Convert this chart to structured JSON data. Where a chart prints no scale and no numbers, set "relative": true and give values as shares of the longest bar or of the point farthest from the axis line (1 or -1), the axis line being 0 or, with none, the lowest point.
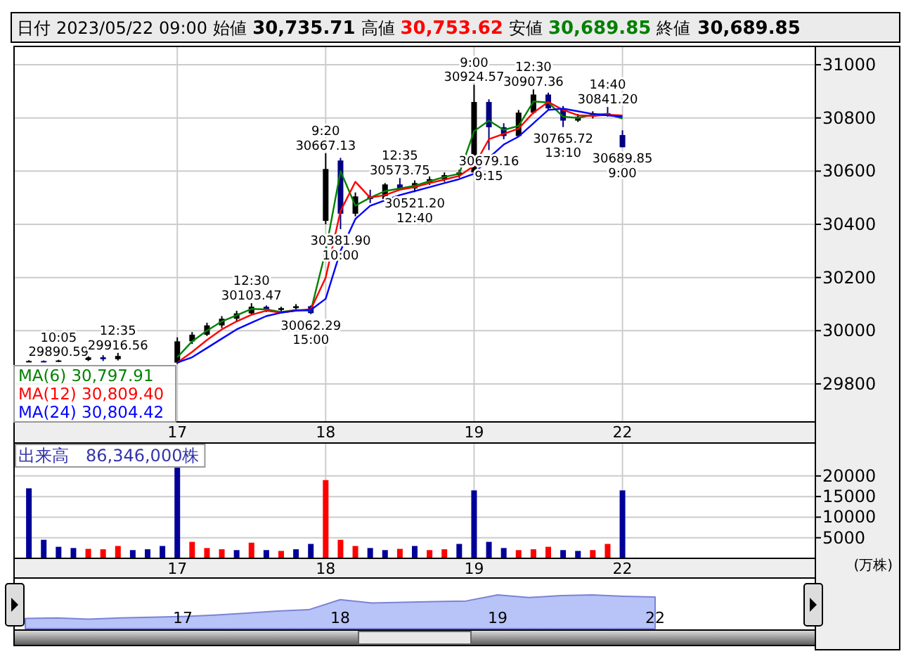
{
  "chart_data": [
    {
      "type": "other",
      "annotations": [
        "日付",
        "2023/05/22 09:00",
        "始値",
        "30,735.71",
        "高値",
        "30,753.62",
        "安値",
        "30,689.85",
        "終値",
        "30,689.85"
      ]
    },
    {
      "type": "candlestick",
      "categories": [
        null,
        null,
        null,
        null,
        null,
        null,
        null,
        null,
        null,
        null,
        "17",
        null,
        null,
        null,
        null,
        null,
        null,
        null,
        null,
        null,
        "18",
        null,
        null,
        null,
        null,
        null,
        null,
        null,
        null,
        null,
        "19",
        null,
        null,
        null,
        null,
        null,
        null,
        null,
        null,
        null,
        "22",
        null,
        null,
        null,
        null,
        null,
        null,
        null,
        null,
        null,
        null,
        null,
        null
      ],
      "ohlc": [
        [
          29884,
          29889,
          29882,
          29886
        ],
        [
          29886,
          29888,
          29882,
          29884
        ],
        [
          29884,
          29890.59,
          29883,
          29888
        ],
        null,
        [
          29890,
          29905,
          29886,
          29900
        ],
        [
          29900,
          29908,
          29886,
          29893
        ],
        [
          29893,
          29916.56,
          29888,
          29905
        ],
        null,
        null,
        null,
        [
          29880,
          29975,
          29875,
          29960
        ],
        [
          29960,
          29995,
          29950,
          29985
        ],
        [
          29985,
          30030,
          29980,
          30020
        ],
        [
          30020,
          30055,
          30010,
          30045
        ],
        [
          30045,
          30075,
          30035,
          30065
        ],
        [
          30065,
          30103.47,
          30060,
          30090
        ],
        [
          30090,
          30095,
          30070,
          30078
        ],
        [
          30078,
          30090,
          30072,
          30085
        ],
        [
          30085,
          30100,
          30080,
          30092
        ],
        [
          30092,
          30095,
          30062.29,
          30066
        ],
        [
          30413,
          30667.13,
          30400,
          30608
        ],
        [
          30640,
          30650,
          30381.9,
          30440
        ],
        [
          30440,
          30520,
          30430,
          30505
        ],
        [
          30505,
          30530,
          30480,
          30495
        ],
        [
          30495,
          30555,
          30490,
          30550
        ],
        [
          30550,
          30573.75,
          30530,
          30535
        ],
        [
          30535,
          30565,
          30521.2,
          30555
        ],
        [
          30555,
          30580,
          30548,
          30570
        ],
        [
          30570,
          30595,
          30560,
          30585
        ],
        [
          30585,
          30605,
          30575,
          30595
        ],
        [
          30595,
          30924.57,
          30590,
          30860
        ],
        [
          30860,
          30870,
          30679.16,
          30765
        ],
        [
          30765,
          30780,
          30720,
          30732
        ],
        [
          30732,
          30830,
          30728,
          30820
        ],
        [
          30820,
          30907.36,
          30815,
          30888
        ],
        [
          30888,
          30895,
          30830,
          30836
        ],
        [
          30836,
          30845,
          30765.72,
          30790
        ],
        [
          30790,
          30815,
          30785,
          30805
        ],
        [
          30805,
          30825,
          30798,
          30818
        ],
        [
          30818,
          30841.2,
          30805,
          30810
        ],
        [
          30735.71,
          30753.62,
          30689.85,
          30689.85
        ],
        null,
        null,
        null,
        null,
        null,
        null,
        null,
        null,
        null,
        null,
        null,
        null
      ],
      "colors": [
        "#000000",
        "#000080",
        "#000000",
        null,
        "#000000",
        "#000080",
        "#000000",
        null,
        null,
        null,
        "#000000",
        "#000000",
        "#000000",
        "#000000",
        "#000000",
        "#000000",
        "#000080",
        "#000000",
        "#000000",
        "#000080",
        "#000000",
        "#000080",
        "#000000",
        "#000080",
        "#000000",
        "#000080",
        "#000000",
        "#000000",
        "#000000",
        "#000000",
        "#000000",
        "#000080",
        "#000080",
        "#000000",
        "#000000",
        "#000080",
        "#000080",
        "#000000",
        "#000000",
        "#000080",
        "#000080",
        null,
        null,
        null,
        null,
        null,
        null,
        null,
        null,
        null,
        null,
        null,
        null
      ],
      "ylim": [
        29657,
        31069
      ],
      "yticks": [
        29800,
        30000,
        30200,
        30400,
        30600,
        30800,
        31000
      ],
      "grid": true,
      "legend": "bottom left",
      "series": [
        {
          "name": "MA(6)  30,797.91",
          "type": "line",
          "color": "#008000",
          "values": [
            null,
            null,
            null,
            null,
            null,
            null,
            null,
            null,
            null,
            null,
            29900,
            29960,
            30000,
            30035,
            30058,
            30082,
            30080,
            30070,
            30078,
            30075,
            30300,
            30600,
            30470,
            30500,
            30525,
            30535,
            30545,
            30562,
            30578,
            30590,
            30750,
            30790,
            30755,
            30770,
            30862,
            30858,
            30805,
            30800,
            30812,
            30815,
            30797.91,
            null,
            null,
            null,
            null,
            null,
            null,
            null,
            null,
            null,
            null,
            null,
            null
          ]
        },
        {
          "name": "MA(12) 30,809.40",
          "type": "line",
          "color": "#ff0000",
          "values": [
            null,
            null,
            null,
            null,
            null,
            null,
            null,
            null,
            null,
            null,
            29880,
            29920,
            29965,
            30005,
            30035,
            30060,
            30075,
            30068,
            30076,
            30080,
            30200,
            30450,
            30560,
            30500,
            30510,
            30530,
            30540,
            30555,
            30568,
            30582,
            30620,
            30720,
            30740,
            30760,
            30820,
            30860,
            30830,
            30810,
            30808,
            30812,
            30809.4,
            null,
            null,
            null,
            null,
            null,
            null,
            null,
            null,
            null,
            null,
            null,
            null
          ]
        },
        {
          "name": "MA(24) 30,804.42",
          "type": "line",
          "color": "#0000ff",
          "values": [
            null,
            null,
            null,
            null,
            null,
            null,
            null,
            null,
            null,
            null,
            29880,
            29900,
            29935,
            29970,
            30005,
            30030,
            30055,
            30068,
            30075,
            30078,
            30120,
            30300,
            30420,
            30470,
            30490,
            30510,
            30525,
            30540,
            30555,
            30570,
            30590,
            30650,
            30700,
            30730,
            30780,
            30830,
            30835,
            30825,
            30815,
            30810,
            30804.42,
            null,
            null,
            null,
            null,
            null,
            null,
            null,
            null,
            null,
            null,
            null,
            null
          ]
        }
      ],
      "annotations": [
        {
          "text": "10:05\n29890.59",
          "y": 29890.59
        },
        {
          "text": "12:35\n29916.56",
          "y": 29916.56
        },
        {
          "text": "12:30\n30103.47",
          "y": 30103.47
        },
        {
          "text": "30062.29\n15:00",
          "y": 30062.29
        },
        {
          "text": "9:20\n30667.13",
          "y": 30667.13
        },
        {
          "text": "30381.90\n10:00",
          "y": 30381.9
        },
        {
          "text": "12:35\n30573.75",
          "y": 30573.75
        },
        {
          "text": "30521.20\n12:40",
          "y": 30521.2
        },
        {
          "text": "9:00\n30924.57",
          "y": 30924.57
        },
        {
          "text": "30679.16\n9:15",
          "y": 30679.16
        },
        {
          "text": "12:30\n30907.36",
          "y": 30907.36
        },
        {
          "text": "30765.72\n13:10",
          "y": 30765.72
        },
        {
          "text": "14:40\n30841.20",
          "y": 30841.2
        },
        {
          "text": "30689.85\n9:00",
          "y": 30689.85
        }
      ]
    },
    {
      "type": "bar",
      "title": "出来高　86,346,000株",
      "ylabel": "(万株)",
      "categories": [
        null,
        null,
        null,
        null,
        null,
        null,
        null,
        null,
        null,
        null,
        "17",
        null,
        null,
        null,
        null,
        null,
        null,
        null,
        null,
        null,
        "18",
        null,
        null,
        null,
        null,
        null,
        null,
        null,
        null,
        null,
        "19",
        null,
        null,
        null,
        null,
        null,
        null,
        null,
        null,
        null,
        "22",
        null,
        null,
        null,
        null,
        null,
        null,
        null,
        null,
        null,
        null,
        null,
        null
      ],
      "values": [
        17000,
        4500,
        2800,
        2500,
        2300,
        2200,
        3000,
        2000,
        2200,
        3000,
        22000,
        4000,
        2500,
        2200,
        2000,
        3800,
        2000,
        1800,
        2200,
        3500,
        19000,
        4500,
        3000,
        2500,
        2000,
        2300,
        3000,
        2000,
        2200,
        3500,
        16500,
        4000,
        2500,
        2000,
        2200,
        2800,
        2000,
        1800,
        2000,
        3500,
        16500,
        null,
        null,
        null,
        null,
        null,
        null,
        null,
        null,
        null,
        null,
        null,
        null
      ],
      "colors": [
        "#000099",
        "#000099",
        "#000099",
        "#000099",
        "#ff0000",
        "#ff0000",
        "#ff0000",
        "#000099",
        "#000099",
        "#000099",
        "#000099",
        "#ff0000",
        "#ff0000",
        "#ff0000",
        "#000099",
        "#ff0000",
        "#000099",
        "#ff0000",
        "#000099",
        "#000099",
        "#ff0000",
        "#ff0000",
        "#ff0000",
        "#000099",
        "#000099",
        "#ff0000",
        "#000099",
        "#ff0000",
        "#ff0000",
        "#000099",
        "#000099",
        "#000099",
        "#000099",
        "#ff0000",
        "#ff0000",
        "#ff0000",
        "#000099",
        "#000099",
        "#ff0000",
        "#ff0000",
        "#000099",
        null,
        null,
        null,
        null,
        null,
        null,
        null,
        null,
        null,
        null,
        null,
        null
      ],
      "ylim": [
        0,
        28000
      ],
      "yticks": [
        5000,
        10000,
        15000,
        20000
      ],
      "grid": true
    },
    {
      "type": "area",
      "relative": true,
      "color": "#b8c4f8",
      "categories": [
        null,
        null,
        null,
        null,
        null,
        "17",
        null,
        null,
        null,
        null,
        "18",
        null,
        null,
        null,
        null,
        "19",
        null,
        null,
        null,
        null,
        "22",
        null,
        null,
        null,
        null
      ],
      "values": [
        0.3,
        0.32,
        0.28,
        0.32,
        0.34,
        0.36,
        0.4,
        0.46,
        0.52,
        0.56,
        0.86,
        0.76,
        0.78,
        0.8,
        0.82,
        1.0,
        0.92,
        0.98,
        1.0,
        0.96,
        0.94,
        null,
        null,
        null,
        null
      ]
    }
  ]
}
